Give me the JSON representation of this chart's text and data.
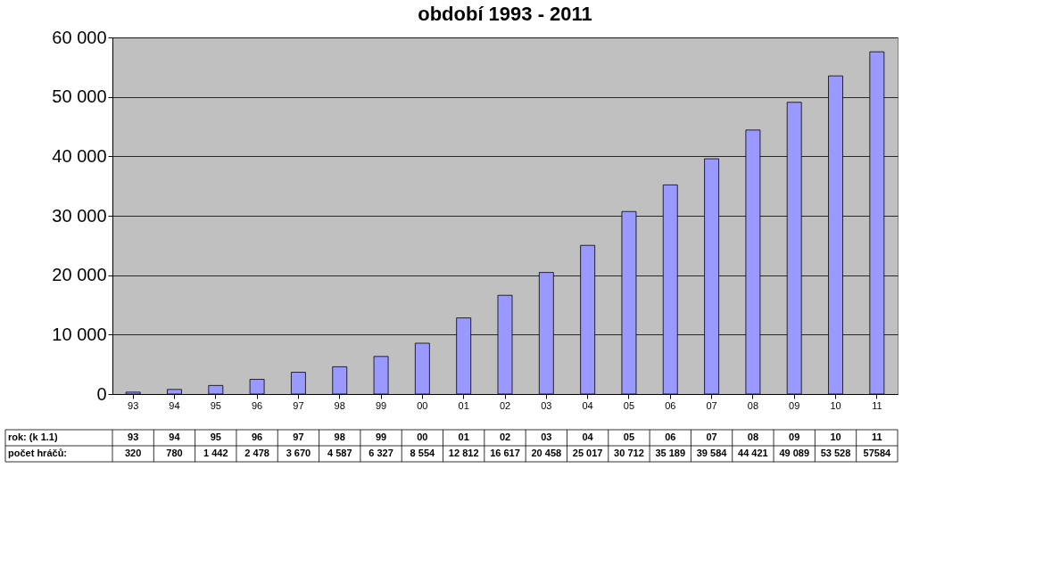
{
  "chart_data": {
    "type": "bar",
    "title": "období 1993 - 2011",
    "categories": [
      "93",
      "94",
      "95",
      "96",
      "97",
      "98",
      "99",
      "00",
      "01",
      "02",
      "03",
      "04",
      "05",
      "06",
      "07",
      "08",
      "09",
      "10",
      "11"
    ],
    "values": [
      320,
      780,
      1442,
      2478,
      3670,
      4587,
      6327,
      8554,
      12812,
      16617,
      20458,
      25017,
      30712,
      35189,
      39584,
      44421,
      49089,
      53528,
      57584
    ],
    "value_labels": [
      "320",
      "780",
      "1 442",
      "2 478",
      "3 670",
      "4 587",
      "6 327",
      "8 554",
      "12 812",
      "16 617",
      "20 458",
      "25 017",
      "30 712",
      "35 189",
      "39 584",
      "44 421",
      "49 089",
      "53 528",
      "57584"
    ],
    "color": "#9999ff",
    "ylim": [
      0,
      60000
    ],
    "yticks": [
      {
        "value": 0,
        "label": "0"
      },
      {
        "value": 10000,
        "label": "10 000"
      },
      {
        "value": 20000,
        "label": "20 000"
      },
      {
        "value": 30000,
        "label": "30 000"
      },
      {
        "value": 40000,
        "label": "40 000"
      },
      {
        "value": 50000,
        "label": "50 000"
      },
      {
        "value": 60000,
        "label": "60 000"
      }
    ],
    "grid": "y",
    "legend": false,
    "annotations": [
      "rok: (k 1.1)",
      "počet hráčů:"
    ]
  }
}
